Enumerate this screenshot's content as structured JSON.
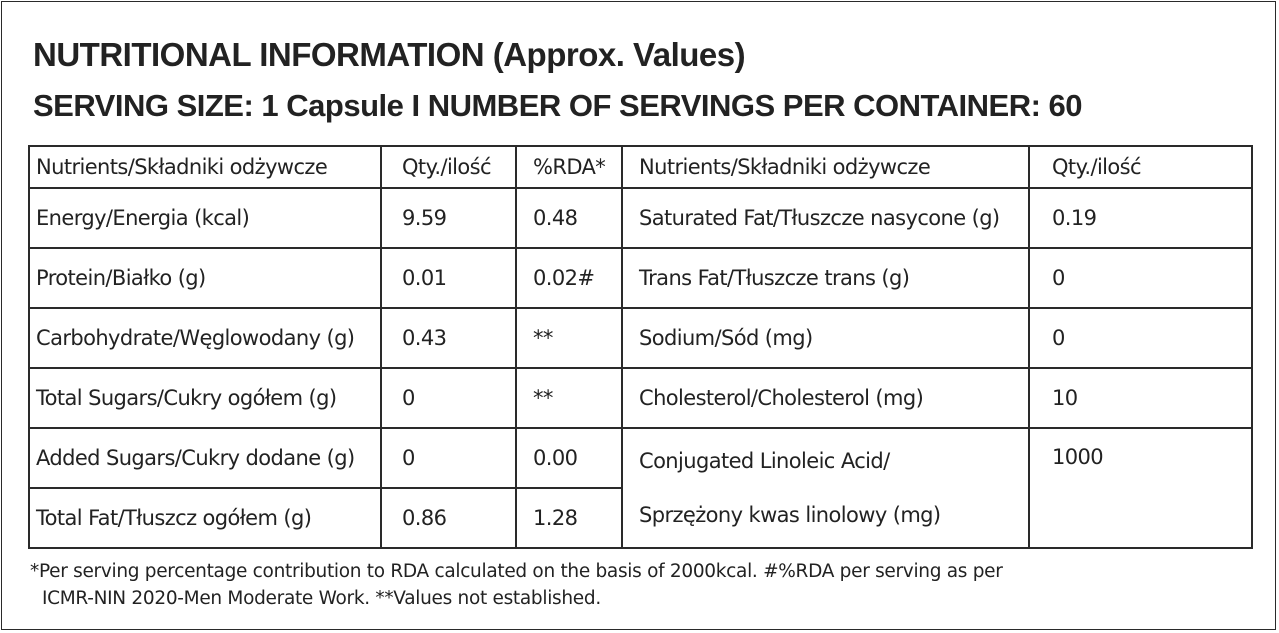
{
  "header": {
    "title": "NUTRITIONAL INFORMATION (Approx. Values)",
    "serving": "SERVING SIZE: 1 Capsule  I  NUMBER OF SERVINGS PER CONTAINER: 60"
  },
  "table": {
    "headers": {
      "nutrients_left": "Nutrients/Składniki odżywcze",
      "qty_left": "Qty./ilość",
      "rda": "%RDA*",
      "nutrients_right": "Nutrients/Składniki odżywcze",
      "qty_right": "Qty./ilość"
    },
    "left_rows": [
      {
        "name": "Energy/Energia  (kcal)",
        "qty": "9.59",
        "rda": "0.48"
      },
      {
        "name": "Protein/Białko (g)",
        "qty": "0.01",
        "rda": "0.02#"
      },
      {
        "name": "Carbohydrate/Węglowodany (g)",
        "qty": "0.43",
        "rda": "**"
      },
      {
        "name": "Total Sugars/Cukry ogółem  (g)",
        "qty": "0",
        "rda": "**"
      },
      {
        "name": "Added Sugars/Cukry dodane (g)",
        "qty": "0",
        "rda": "0.00"
      },
      {
        "name": "Total Fat/Tłuszcz ogółem (g)",
        "qty": "0.86",
        "rda": "1.28"
      }
    ],
    "right_rows": [
      {
        "name": "Saturated Fat/Tłuszcze nasycone (g)",
        "qty": "0.19"
      },
      {
        "name": "Trans Fat/Tłuszcze trans (g)",
        "qty": "0"
      },
      {
        "name": "Sodium/Sód (mg)",
        "qty": "0"
      },
      {
        "name": "Cholesterol/Cholesterol (mg)",
        "qty": "10"
      },
      {
        "name_line1": "Conjugated Linoleic Acid/",
        "name_line2": "Sprzężony kwas linolowy (mg)",
        "qty": "1000"
      }
    ]
  },
  "footnote": {
    "line1": "*Per serving percentage contribution to RDA calculated on the basis of 2000kcal. #%RDA per serving as per",
    "line2": "ICMR-NIN 2020-Men Moderate Work.  **Values not established."
  }
}
